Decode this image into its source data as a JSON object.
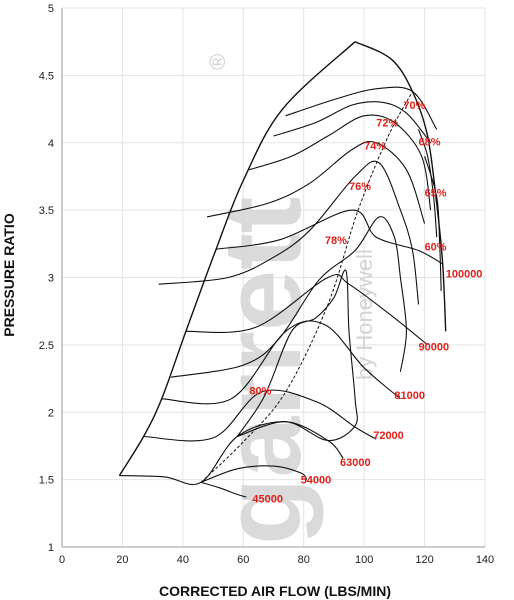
{
  "chart_data": {
    "type": "line",
    "title": "",
    "xlabel": "CORRECTED AIR FLOW (LBS/MIN)",
    "ylabel": "PRESSURE RATIO",
    "xlim": [
      0,
      140
    ],
    "ylim": [
      1,
      5
    ],
    "xticks": [
      "0",
      "20",
      "40",
      "60",
      "80",
      "100",
      "120",
      "140"
    ],
    "yticks": [
      "1",
      "1.5",
      "2",
      "2.5",
      "3",
      "3.5",
      "4",
      "4.5",
      "5"
    ],
    "grid": true,
    "watermark": {
      "main": "garrett",
      "sub": "by Honeywell",
      "mark": "®"
    },
    "colors": {
      "labels": "#e0211b",
      "lines": "#111111",
      "grid": "#e3e3e3"
    },
    "surge_line": [
      [
        19,
        1.53
      ],
      [
        27,
        1.82
      ],
      [
        33,
        2.1
      ],
      [
        41,
        2.6
      ],
      [
        51,
        3.21
      ],
      [
        60,
        3.72
      ],
      [
        73,
        4.25
      ],
      [
        97,
        4.75
      ]
    ],
    "choke_line": [
      [
        97,
        4.75
      ],
      [
        109,
        4.62
      ],
      [
        116,
        4.38
      ],
      [
        121,
        4.05
      ],
      [
        124,
        3.55
      ],
      [
        126,
        3.1
      ],
      [
        127,
        2.6
      ]
    ],
    "peak_efficiency_line": [
      [
        46,
        1.48
      ],
      [
        60,
        1.78
      ],
      [
        74,
        2.15
      ],
      [
        88,
        2.8
      ],
      [
        98,
        3.5
      ],
      [
        108,
        4.05
      ],
      [
        116,
        4.38
      ]
    ],
    "speed_lines": [
      {
        "name": "45000",
        "points": [
          [
            46,
            1.48
          ],
          [
            52,
            1.44
          ],
          [
            58,
            1.39
          ],
          [
            61,
            1.37
          ]
        ]
      },
      {
        "name": "54000",
        "points": [
          [
            46,
            1.48
          ],
          [
            58,
            1.58
          ],
          [
            70,
            1.6
          ],
          [
            79,
            1.55
          ],
          [
            81,
            1.5
          ]
        ]
      },
      {
        "name": "63000",
        "points": [
          [
            19,
            1.53
          ],
          [
            34,
            1.52
          ],
          [
            46,
            1.48
          ],
          [
            58,
            1.82
          ],
          [
            74,
            1.93
          ],
          [
            88,
            1.79
          ],
          [
            93,
            1.66
          ]
        ]
      },
      {
        "name": "72000",
        "points": [
          [
            27,
            1.82
          ],
          [
            50,
            1.81
          ],
          [
            66,
            2.15
          ],
          [
            84,
            2.08
          ],
          [
            97,
            1.89
          ],
          [
            104,
            1.8
          ]
        ]
      },
      {
        "name": "81000",
        "points": [
          [
            33,
            2.1
          ],
          [
            56,
            2.1
          ],
          [
            74,
            2.6
          ],
          [
            87,
            2.65
          ],
          [
            100,
            2.33
          ],
          [
            112,
            2.1
          ]
        ]
      },
      {
        "name": "90000",
        "points": [
          [
            41,
            2.6
          ],
          [
            64,
            2.63
          ],
          [
            88,
            3.0
          ],
          [
            95,
            2.95
          ],
          [
            110,
            2.7
          ],
          [
            121,
            2.5
          ]
        ]
      },
      {
        "name": "100000",
        "points": [
          [
            51,
            3.21
          ],
          [
            72,
            3.28
          ],
          [
            96,
            3.5
          ],
          [
            104,
            3.3
          ],
          [
            118,
            3.2
          ],
          [
            126,
            3.1
          ]
        ]
      }
    ],
    "efficiency_islands": [
      {
        "name": "80%",
        "points": [
          [
            58,
            1.82
          ],
          [
            67,
            2.12
          ],
          [
            76,
            2.6
          ],
          [
            84,
            2.7
          ],
          [
            90,
            2.85
          ],
          [
            94,
            3.05
          ],
          [
            95,
            2.6
          ],
          [
            97,
            2.1
          ],
          [
            97,
            1.9
          ],
          [
            88,
            1.79
          ],
          [
            74,
            1.93
          ],
          [
            58,
            1.82
          ]
        ]
      },
      {
        "name": "78%",
        "points": [
          [
            36,
            2.26
          ],
          [
            60,
            2.35
          ],
          [
            72,
            2.55
          ],
          [
            85,
            2.98
          ],
          [
            97,
            3.2
          ],
          [
            105,
            3.45
          ],
          [
            110,
            3.3
          ],
          [
            112,
            3.0
          ],
          [
            114,
            2.6
          ],
          [
            112,
            2.3
          ]
        ]
      },
      {
        "name": "76%",
        "points": [
          [
            32,
            2.95
          ],
          [
            55,
            3.0
          ],
          [
            70,
            3.15
          ],
          [
            82,
            3.35
          ],
          [
            97,
            3.75
          ],
          [
            105,
            3.85
          ],
          [
            112,
            3.5
          ],
          [
            116,
            3.2
          ],
          [
            118,
            2.8
          ]
        ]
      },
      {
        "name": "74%",
        "points": [
          [
            48,
            3.45
          ],
          [
            68,
            3.55
          ],
          [
            82,
            3.7
          ],
          [
            96,
            3.95
          ],
          [
            104,
            4.0
          ],
          [
            114,
            3.8
          ],
          [
            120,
            3.4
          ]
        ]
      },
      {
        "name": "72%",
        "points": [
          [
            62,
            3.8
          ],
          [
            76,
            3.9
          ],
          [
            88,
            4.05
          ],
          [
            100,
            4.2
          ],
          [
            110,
            4.15
          ],
          [
            119,
            3.9
          ],
          [
            122,
            3.5
          ]
        ]
      },
      {
        "name": "70%",
        "points": [
          [
            70,
            4.05
          ],
          [
            84,
            4.15
          ],
          [
            96,
            4.28
          ],
          [
            106,
            4.3
          ],
          [
            114,
            4.22
          ],
          [
            122,
            4.0
          ]
        ]
      },
      {
        "name": "68%",
        "points": [
          [
            74,
            4.2
          ],
          [
            90,
            4.32
          ],
          [
            104,
            4.4
          ],
          [
            116,
            4.38
          ],
          [
            124,
            4.1
          ]
        ]
      },
      {
        "name": "65%",
        "points": [
          [
            118,
            4.1
          ],
          [
            121,
            3.9
          ],
          [
            123,
            3.6
          ],
          [
            124,
            3.3
          ]
        ]
      },
      {
        "name": "60%",
        "points": [
          [
            120,
            3.9
          ],
          [
            124,
            3.6
          ],
          [
            125,
            3.25
          ],
          [
            125.5,
            2.9
          ]
        ]
      }
    ],
    "efficiency_labels": [
      {
        "text": "70%",
        "x": 113,
        "y": 4.25
      },
      {
        "text": "72%",
        "x": 104,
        "y": 4.12
      },
      {
        "text": "68%",
        "x": 118,
        "y": 3.98
      },
      {
        "text": "74%",
        "x": 100,
        "y": 3.95
      },
      {
        "text": "76%",
        "x": 95,
        "y": 3.65
      },
      {
        "text": "65%",
        "x": 120,
        "y": 3.6
      },
      {
        "text": "78%",
        "x": 87,
        "y": 3.25
      },
      {
        "text": "60%",
        "x": 120,
        "y": 3.2
      },
      {
        "text": "80%",
        "x": 62,
        "y": 2.13
      }
    ],
    "speed_labels": [
      {
        "text": "100000",
        "x": 127,
        "y": 3.0
      },
      {
        "text": "90000",
        "x": 118,
        "y": 2.46
      },
      {
        "text": "81000",
        "x": 110,
        "y": 2.1
      },
      {
        "text": "72000",
        "x": 103,
        "y": 1.8
      },
      {
        "text": "63000",
        "x": 92,
        "y": 1.6
      },
      {
        "text": "54000",
        "x": 79,
        "y": 1.47
      },
      {
        "text": "45000",
        "x": 63,
        "y": 1.33
      }
    ]
  }
}
